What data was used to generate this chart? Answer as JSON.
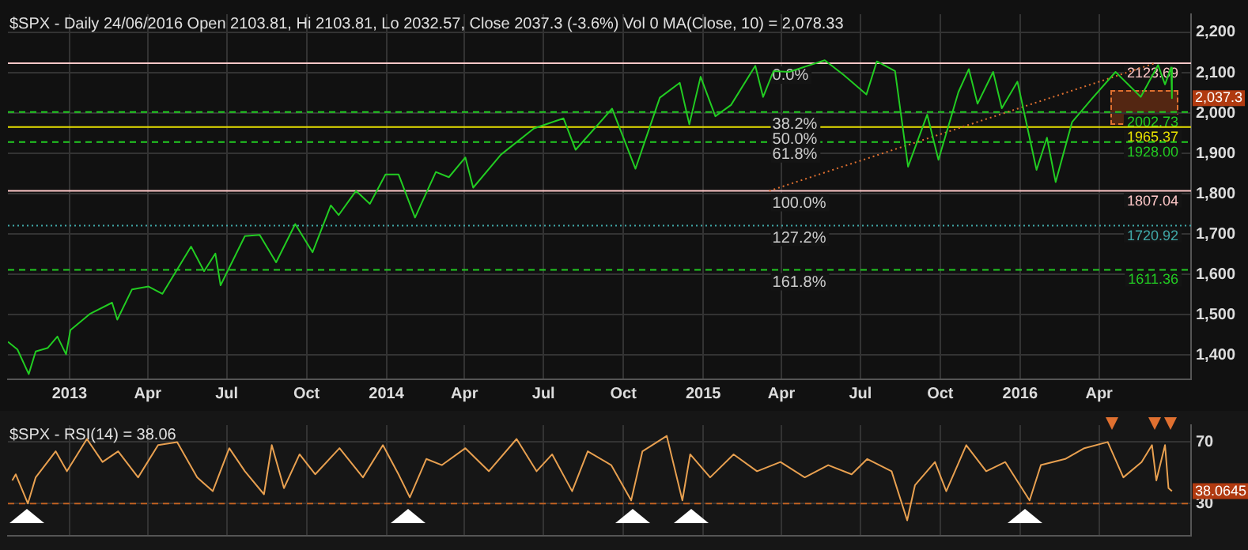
{
  "chart_data": [
    {
      "type": "line",
      "title": "$SPX - Daily 24/06/2016 Open 2103.81, Hi 2103.81, Lo 2032.57, Close 2037.3 (-3.6%) Vol 0 MA(Close, 10) = 2,078.33",
      "x": [
        "2012-10-22",
        "2012-11-02",
        "2012-11-15",
        "2012-11-23",
        "2012-12-07",
        "2012-12-18",
        "2012-12-28",
        "2013-01-02",
        "2013-01-25",
        "2013-02-19",
        "2013-02-25",
        "2013-03-14",
        "2013-04-02",
        "2013-04-18",
        "2013-05-21",
        "2013-06-05",
        "2013-06-18",
        "2013-06-24",
        "2013-07-22",
        "2013-08-08",
        "2013-08-27",
        "2013-09-18",
        "2013-10-08",
        "2013-10-29",
        "2013-11-07",
        "2013-11-27",
        "2013-12-13",
        "2013-12-31",
        "2014-01-15",
        "2014-02-03",
        "2014-02-27",
        "2014-03-14",
        "2014-04-02",
        "2014-04-11",
        "2014-05-13",
        "2014-06-20",
        "2014-07-24",
        "2014-08-07",
        "2014-09-18",
        "2014-10-15",
        "2014-11-12",
        "2014-12-05",
        "2014-12-16",
        "2014-12-29",
        "2015-01-15",
        "2015-02-02",
        "2015-03-02",
        "2015-03-11",
        "2015-03-23",
        "2015-04-10",
        "2015-05-21",
        "2015-06-12",
        "2015-07-08",
        "2015-07-20",
        "2015-08-10",
        "2015-08-25",
        "2015-09-16",
        "2015-09-29",
        "2015-10-22",
        "2015-11-03",
        "2015-11-13",
        "2015-12-01",
        "2015-12-11",
        "2015-12-29",
        "2016-01-20",
        "2016-02-01",
        "2016-02-11",
        "2016-03-01",
        "2016-03-24",
        "2016-04-20",
        "2016-05-19",
        "2016-06-08",
        "2016-06-16",
        "2016-06-23",
        "2016-06-24"
      ],
      "series": [
        {
          "color": "#22cc22",
          "values": [
            1433,
            1414,
            1353,
            1409,
            1418,
            1446,
            1402,
            1462,
            1503,
            1530,
            1488,
            1563,
            1570,
            1552,
            1669,
            1608,
            1652,
            1573,
            1695,
            1698,
            1630,
            1725,
            1655,
            1771,
            1747,
            1807,
            1775,
            1848,
            1848,
            1741,
            1854,
            1841,
            1890,
            1815,
            1897,
            1962,
            1987,
            1909,
            2011,
            1862,
            2038,
            2075,
            1972,
            2090,
            1992,
            2020,
            2117,
            2040,
            2104,
            2102,
            2131,
            2094,
            2046,
            2128,
            2104,
            1867,
            1996,
            1884,
            2052,
            2109,
            2023,
            2102,
            2012,
            2078,
            1859,
            1939,
            1829,
            1978,
            2036,
            2102,
            2040,
            2119,
            2071,
            2113,
            2037
          ]
        },
        {
          "type": "line",
          "x": [
            "2015-03-18",
            "2016-06-05"
          ],
          "values": [
            1807,
            2124
          ],
          "color": "#e07030",
          "line_style": "dotted"
        }
      ],
      "xlim": [
        "2012-10-22",
        "2016-07-16"
      ],
      "ylim": [
        1340,
        2245
      ],
      "xticks": [
        {
          "value": "2013-01-01",
          "label": "2013"
        },
        {
          "value": "2013-04-01",
          "label": "Apr"
        },
        {
          "value": "2013-07-01",
          "label": "Jul"
        },
        {
          "value": "2013-10-01",
          "label": "Oct"
        },
        {
          "value": "2014-01-01",
          "label": "2014"
        },
        {
          "value": "2014-04-01",
          "label": "Apr"
        },
        {
          "value": "2014-07-01",
          "label": "Jul"
        },
        {
          "value": "2014-10-01",
          "label": "Oct"
        },
        {
          "value": "2015-01-01",
          "label": "2015"
        },
        {
          "value": "2015-04-01",
          "label": "Apr"
        },
        {
          "value": "2015-07-01",
          "label": "Jul"
        },
        {
          "value": "2015-10-01",
          "label": "Oct"
        },
        {
          "value": "2016-01-01",
          "label": "2016"
        },
        {
          "value": "2016-04-01",
          "label": "Apr"
        }
      ],
      "yticks": [
        {
          "value": 1400,
          "label": "1,400"
        },
        {
          "value": 1500,
          "label": "1,500"
        },
        {
          "value": 1600,
          "label": "1,600"
        },
        {
          "value": 1700,
          "label": "1,700"
        },
        {
          "value": 1800,
          "label": "1,800"
        },
        {
          "value": 1900,
          "label": "1,900"
        },
        {
          "value": 2000,
          "label": "2,000"
        },
        {
          "value": 2100,
          "label": "2,100"
        },
        {
          "value": 2200,
          "label": "2,200"
        }
      ],
      "grid": true,
      "ref_lines": [
        {
          "axis": "y",
          "value": 2123.69,
          "label": "2123.69",
          "color": "#ffc8c8",
          "line_style": "solid"
        },
        {
          "axis": "y",
          "value": 2002.73,
          "label": "2002.73",
          "color": "#22cc22",
          "line_style": "dashed"
        },
        {
          "axis": "y",
          "value": 1965.37,
          "label": "1965.37",
          "color": "#e8e000",
          "line_style": "solid"
        },
        {
          "axis": "y",
          "value": 1928.0,
          "label": "1928.00",
          "color": "#22cc22",
          "line_style": "dashed"
        },
        {
          "axis": "y",
          "value": 1807.04,
          "label": "1807.04",
          "color": "#ffc8c8",
          "line_style": "solid"
        },
        {
          "axis": "y",
          "value": 1720.92,
          "label": "1720.92",
          "color": "#40a8a8",
          "line_style": "dotted"
        },
        {
          "axis": "y",
          "value": 1611.36,
          "label": "1611.36",
          "color": "#22cc22",
          "line_style": "dashed"
        }
      ],
      "annotations": [
        {
          "text": "0.0%",
          "x": "2015-03-18",
          "y": 2123.69
        },
        {
          "text": "38.2%",
          "x": "2015-03-18",
          "y": 2002.73
        },
        {
          "text": "50.0%",
          "x": "2015-03-18",
          "y": 1965.37
        },
        {
          "text": "61.8%",
          "x": "2015-03-18",
          "y": 1928.0
        },
        {
          "text": "100.0%",
          "x": "2015-03-18",
          "y": 1807.04
        },
        {
          "text": "127.2%",
          "x": "2015-03-18",
          "y": 1720.92
        },
        {
          "text": "161.8%",
          "x": "2015-03-18",
          "y": 1611.36
        },
        "2,037.3"
      ]
    },
    {
      "type": "line",
      "title": "$SPX - RSI(14) = 38.06",
      "x": [
        "2012-10-27",
        "2012-10-31",
        "2012-11-14",
        "2012-11-23",
        "2012-12-16",
        "2012-12-29",
        "2013-01-21",
        "2013-02-08",
        "2013-02-26",
        "2013-03-21",
        "2013-04-13",
        "2013-05-05",
        "2013-05-28",
        "2013-06-15",
        "2013-07-04",
        "2013-07-22",
        "2013-08-13",
        "2013-08-22",
        "2013-09-05",
        "2013-09-23",
        "2013-10-11",
        "2013-11-08",
        "2013-12-05",
        "2013-12-28",
        "2014-01-15",
        "2014-01-28",
        "2014-02-16",
        "2014-03-06",
        "2014-04-02",
        "2014-04-29",
        "2014-05-31",
        "2014-06-23",
        "2014-07-11",
        "2014-08-03",
        "2014-08-21",
        "2014-09-17",
        "2014-10-10",
        "2014-10-23",
        "2014-11-20",
        "2014-12-08",
        "2014-12-17",
        "2015-01-09",
        "2015-02-05",
        "2015-03-04",
        "2015-03-31",
        "2015-04-28",
        "2015-05-25",
        "2015-06-21",
        "2015-07-09",
        "2015-08-06",
        "2015-08-24",
        "2015-09-02",
        "2015-09-25",
        "2015-10-08",
        "2015-10-31",
        "2015-11-23",
        "2015-12-15",
        "2016-01-12",
        "2016-01-25",
        "2016-02-22",
        "2016-03-15",
        "2016-04-11",
        "2016-04-29",
        "2016-05-20",
        "2016-06-01",
        "2016-06-06",
        "2016-06-16",
        "2016-06-20",
        "2016-06-24"
      ],
      "series": [
        {
          "color": "#e8a050",
          "values": [
            45,
            49,
            30,
            47,
            64,
            51,
            72,
            57,
            64,
            47,
            68,
            70,
            47,
            38,
            66,
            51,
            36,
            68,
            40,
            62,
            49,
            66,
            47,
            68,
            49,
            34,
            59,
            55,
            66,
            51,
            72,
            51,
            62,
            38,
            64,
            55,
            32,
            64,
            74,
            32,
            62,
            47,
            62,
            51,
            57,
            47,
            55,
            49,
            59,
            51,
            19,
            42,
            57,
            38,
            68,
            51,
            57,
            32,
            55,
            59,
            66,
            70,
            47,
            57,
            68,
            45,
            68,
            40,
            38
          ]
        }
      ],
      "xlim": [
        "2012-10-22",
        "2016-07-16"
      ],
      "ylim": [
        9,
        81
      ],
      "xticks": [
        {
          "value": "2013-01-01",
          "label": null
        },
        {
          "value": "2013-04-01",
          "label": null
        },
        {
          "value": "2013-07-01",
          "label": null
        },
        {
          "value": "2013-10-01",
          "label": null
        },
        {
          "value": "2014-01-01",
          "label": null
        },
        {
          "value": "2014-04-01",
          "label": null
        },
        {
          "value": "2014-07-01",
          "label": null
        },
        {
          "value": "2014-10-01",
          "label": null
        },
        {
          "value": "2015-01-01",
          "label": null
        },
        {
          "value": "2015-04-01",
          "label": null
        },
        {
          "value": "2015-07-01",
          "label": null
        },
        {
          "value": "2015-10-01",
          "label": null
        },
        {
          "value": "2016-01-01",
          "label": null
        },
        {
          "value": "2016-04-01",
          "label": null
        }
      ],
      "yticks": [
        30,
        70
      ],
      "tick_labels": "y",
      "grid": true,
      "ref_lines": [
        {
          "axis": "y",
          "value": 30,
          "color": "#c06020",
          "line_style": "dashed"
        }
      ],
      "annotations": [
        "38.0645"
      ]
    }
  ]
}
